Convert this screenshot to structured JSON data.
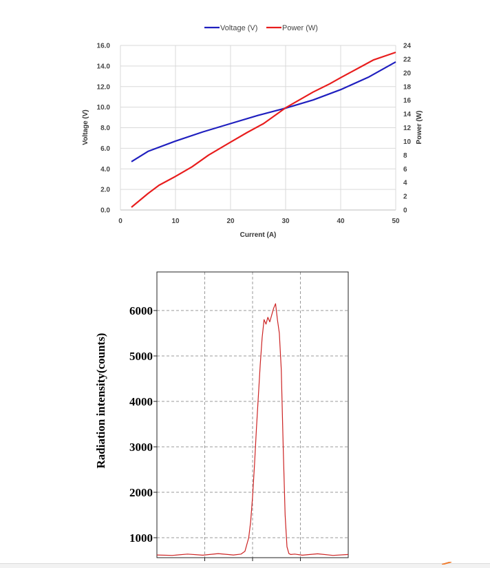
{
  "chart_data": [
    {
      "type": "line",
      "xlabel": "Current (A)",
      "ylabel": "Voltage (V)",
      "y2label": "Power (W)",
      "xlim": [
        0,
        50
      ],
      "ylim": [
        0,
        16
      ],
      "y2lim": [
        0,
        24
      ],
      "x_ticks": [
        "0",
        "10",
        "20",
        "30",
        "40",
        "50"
      ],
      "y_ticks": [
        "0.0",
        "2.0",
        "4.0",
        "6.0",
        "8.0",
        "10.0",
        "12.0",
        "14.0",
        "16.0"
      ],
      "y2_ticks": [
        "0",
        "2",
        "4",
        "6",
        "8",
        "10",
        "12",
        "14",
        "16",
        "18",
        "20",
        "22",
        "24"
      ],
      "grid": true,
      "legend_position": "top",
      "series": [
        {
          "name": "Voltage (V)",
          "axis": "left",
          "color": "#1f1fbf",
          "x": [
            2,
            5,
            10,
            15,
            20,
            25,
            30,
            35,
            40,
            45,
            50
          ],
          "y": [
            4.7,
            5.7,
            6.7,
            7.6,
            8.4,
            9.2,
            9.9,
            10.7,
            11.7,
            12.9,
            14.4
          ]
        },
        {
          "name": "Power (W)",
          "axis": "right",
          "color": "#e81d1d",
          "x": [
            2,
            5,
            7,
            10,
            13,
            16,
            20,
            23,
            26,
            30,
            35,
            38,
            40,
            43,
            46,
            50
          ],
          "y": [
            0.4,
            2.4,
            3.6,
            4.9,
            6.3,
            8.0,
            9.9,
            11.3,
            12.6,
            14.9,
            17.2,
            18.4,
            19.3,
            20.6,
            21.9,
            23.0
          ]
        }
      ]
    },
    {
      "type": "line",
      "ylabel": "Radiation intensity(counts)",
      "y_ticks": [
        "1000",
        "2000",
        "3000",
        "4000",
        "5000",
        "6000"
      ],
      "xlim": [
        0,
        100
      ],
      "ylim": [
        0,
        6700
      ],
      "grid": true,
      "series": [
        {
          "color": "#cc2222",
          "x": [
            0,
            8,
            16,
            24,
            32,
            40,
            44,
            46,
            48,
            49,
            50,
            51,
            52,
            54,
            55,
            56,
            57,
            58,
            59,
            60,
            61,
            62,
            63,
            64,
            65,
            66,
            67,
            68,
            69,
            70,
            72,
            76,
            84,
            92,
            100
          ],
          "y": [
            620,
            610,
            640,
            615,
            650,
            620,
            640,
            700,
            1000,
            1350,
            1900,
            2600,
            3400,
            4800,
            5400,
            5800,
            5700,
            5850,
            5750,
            5900,
            6050,
            6150,
            5800,
            5500,
            4700,
            3000,
            1500,
            800,
            650,
            630,
            640,
            615,
            645,
            610,
            630
          ]
        }
      ]
    }
  ]
}
